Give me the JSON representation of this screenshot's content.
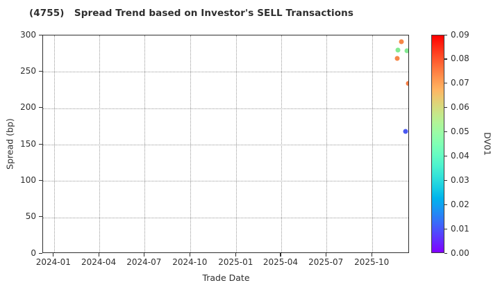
{
  "chart_data": {
    "type": "scatter",
    "title": "(4755)   Spread Trend based on Investor's SELL Transactions",
    "xlabel": "Trade Date",
    "ylabel": "Spread (bp)",
    "x_domain": [
      "2023-12-10",
      "2025-12-15"
    ],
    "ylim": [
      0,
      300
    ],
    "y_ticks": [
      0,
      50,
      100,
      150,
      200,
      250,
      300
    ],
    "x_tick_dates": [
      "2024-01-01",
      "2024-04-01",
      "2024-07-01",
      "2024-10-01",
      "2025-01-01",
      "2025-04-01",
      "2025-07-01",
      "2025-10-01"
    ],
    "x_tick_labels": [
      "2024-01",
      "2024-04",
      "2024-07",
      "2024-10",
      "2025-01",
      "2025-04",
      "2025-07",
      "2025-10"
    ],
    "grid": "dotted",
    "colorbar": {
      "label": "DV01",
      "min": 0.0,
      "max": 0.09,
      "ticks": [
        "0.00",
        "0.01",
        "0.02",
        "0.03",
        "0.04",
        "0.05",
        "0.06",
        "0.07",
        "0.08",
        "0.09"
      ],
      "colormap": "rainbow",
      "position": "right"
    },
    "points": [
      {
        "date": "2025-11-28",
        "spread_bp": 291,
        "dv01": 0.07,
        "color": "#f5813e"
      },
      {
        "date": "2025-11-21",
        "spread_bp": 280,
        "dv01": 0.05,
        "color": "#7de98c"
      },
      {
        "date": "2025-12-09",
        "spread_bp": 279,
        "dv01": 0.05,
        "color": "#7de98c"
      },
      {
        "date": "2025-11-20",
        "spread_bp": 268,
        "dv01": 0.07,
        "color": "#f5813e"
      },
      {
        "date": "2025-12-12",
        "spread_bp": 234,
        "dv01": 0.07,
        "color": "#f4763a"
      },
      {
        "date": "2025-12-06",
        "spread_bp": 168,
        "dv01": 0.01,
        "color": "#4150f0"
      }
    ]
  }
}
